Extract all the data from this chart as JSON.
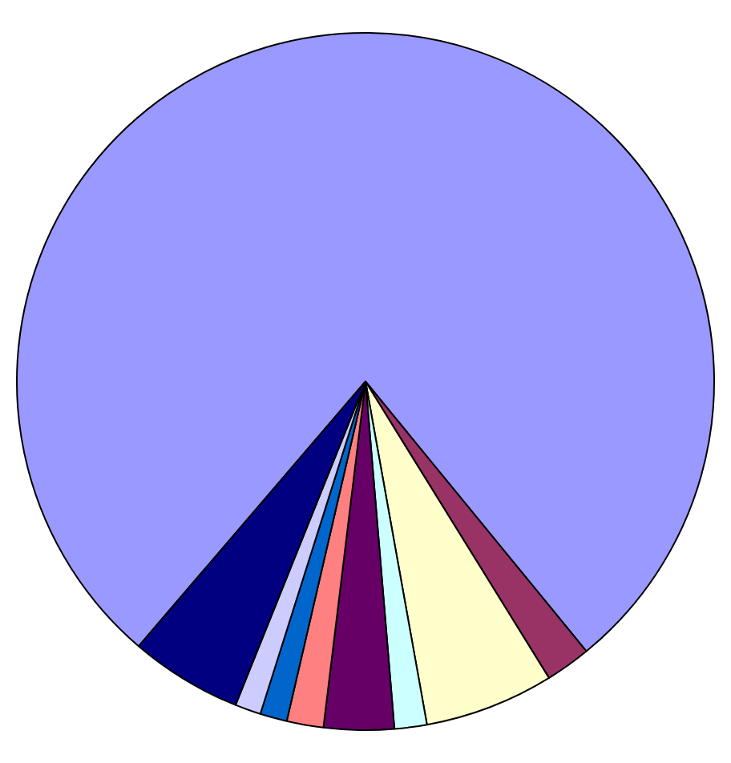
{
  "chart_data": {
    "type": "pie",
    "categories": [
      null,
      null,
      null,
      null,
      null,
      null,
      null,
      null,
      null
    ],
    "values": [
      77.8,
      2.1,
      6.0,
      1.5,
      3.25,
      1.7,
      1.25,
      1.2,
      5.2
    ],
    "colors": [
      "#9999ff",
      "#993366",
      "#ffffcc",
      "#ccffff",
      "#660066",
      "#ff8080",
      "#0066cc",
      "#ccccff",
      "#000080"
    ],
    "legend": false
  }
}
